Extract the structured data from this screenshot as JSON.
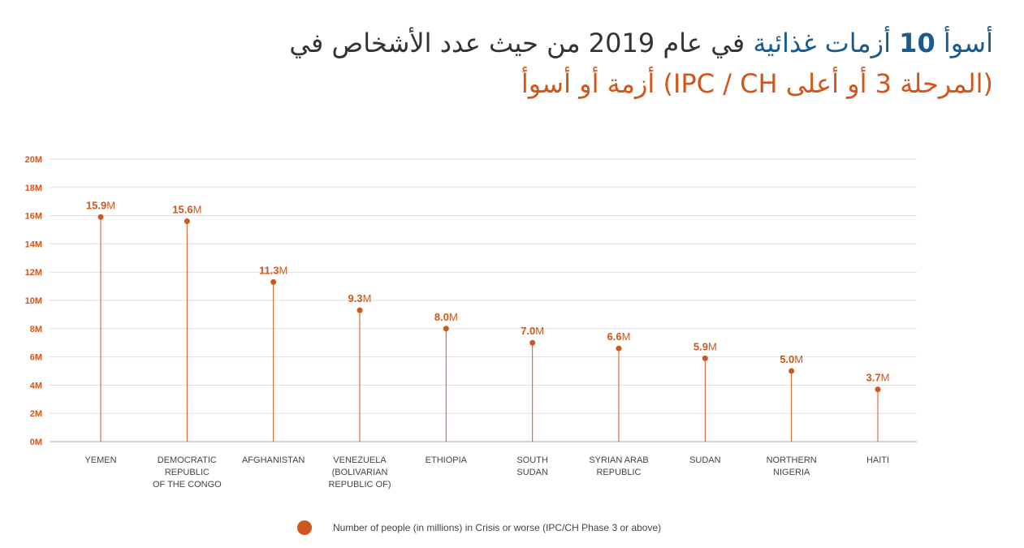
{
  "title": {
    "line1_pre": "أسوأ ",
    "line1_num": "10",
    "line1_mid": " أزمات غذائية",
    "line1_post": " في عام 2019 من حيث عدد الأشخاص في",
    "line2": "(المرحلة 3 أو أعلى IPC / CH) أزمة أو أسوأ"
  },
  "colors": {
    "accent": "#d0561c",
    "title_blue": "#1a5a8c",
    "grid": "#dddddd",
    "text": "#444444"
  },
  "chart_data": {
    "type": "lollipop",
    "categories": [
      [
        "YEMEN"
      ],
      [
        "DEMOCRATIC",
        "REPUBLIC",
        "OF THE CONGO"
      ],
      [
        "AFGHANISTAN"
      ],
      [
        "VENEZUELA",
        "(BOLIVARIAN",
        "REPUBLIC OF)"
      ],
      [
        "ETHIOPIA"
      ],
      [
        "SOUTH",
        "SUDAN"
      ],
      [
        "SYRIAN ARAB",
        "REPUBLIC"
      ],
      [
        "SUDAN"
      ],
      [
        "NORTHERN",
        "NIGERIA"
      ],
      [
        "HAITI"
      ]
    ],
    "values": [
      15.9,
      15.6,
      11.3,
      9.3,
      8.0,
      7.0,
      6.6,
      5.9,
      5.0,
      3.7
    ],
    "value_labels": [
      "15.9",
      "15.6",
      "11.3",
      "9.3",
      "8.0",
      "7.0",
      "6.6",
      "5.9",
      "5.0",
      "3.7"
    ],
    "unit_suffix": "M",
    "yticks": [
      0,
      2,
      4,
      6,
      8,
      10,
      12,
      14,
      16,
      18,
      20
    ],
    "ytick_labels": [
      "0M",
      "2M",
      "4M",
      "6M",
      "8M",
      "10M",
      "12M",
      "14M",
      "16M",
      "18M",
      "20M"
    ],
    "ylim": [
      0,
      20
    ],
    "grid": true,
    "legend": "Number of people (in millions) in Crisis or worse (IPC/CH Phase 3 or above)"
  }
}
